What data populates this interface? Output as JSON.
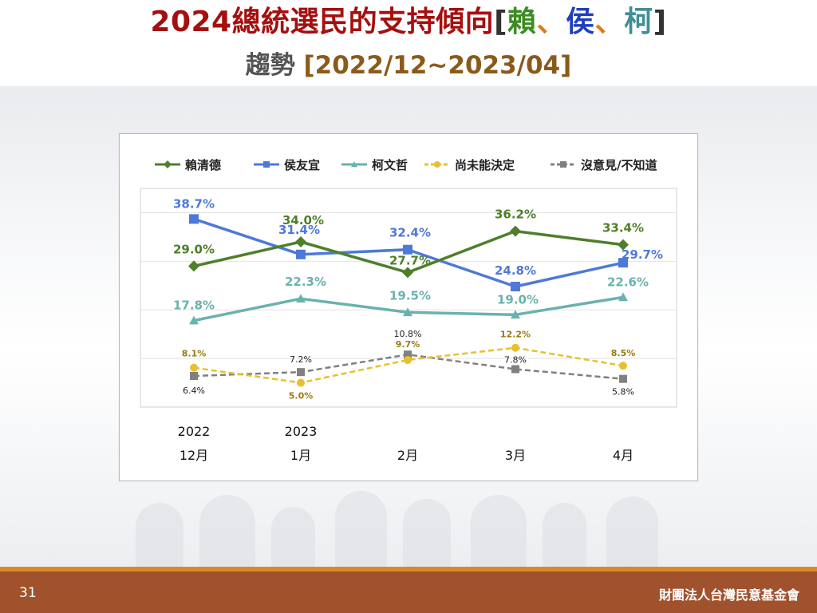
{
  "slide": {
    "title_main": "2024總統選民的支持傾向",
    "title_bracket_open": "[",
    "title_name1": "賴",
    "title_sep1": "、",
    "title_name2": "侯",
    "title_sep2": "、",
    "title_name3": "柯",
    "title_bracket_close": "]",
    "subtitle": "趨勢",
    "subtitle_range": "[2022/12~2023/04]",
    "page_number": "31",
    "organization": "財團法人台灣民意基金會"
  },
  "colors": {
    "title_red": "#a50f0f",
    "lai": "#4e7f2a",
    "hou": "#4f79d8",
    "ko": "#6ab2ad",
    "undecided": "#e8c02f",
    "no_opinion": "#808080",
    "footer": "#a0522d"
  },
  "chart_data": {
    "type": "line",
    "categories": [
      "12月",
      "1月",
      "2月",
      "3月",
      "4月"
    ],
    "year_labels": [
      "2022",
      "2023",
      "",
      "",
      ""
    ],
    "ylim": [
      0,
      45
    ],
    "grid": true,
    "legend_position": "top",
    "series": [
      {
        "name": "賴清德",
        "values": [
          29.0,
          34.0,
          27.7,
          36.2,
          33.4
        ],
        "labels": [
          "29.0%",
          "34.0%",
          "27.7%",
          "36.2%",
          "33.4%"
        ],
        "color": "#4e7f2a",
        "marker": "diamond",
        "dashed": false
      },
      {
        "name": "侯友宜",
        "values": [
          38.7,
          31.4,
          32.4,
          24.8,
          29.7
        ],
        "labels": [
          "38.7%",
          "31.4%",
          "32.4%",
          "24.8%",
          "29.7%"
        ],
        "color": "#4f79d8",
        "marker": "square",
        "dashed": false
      },
      {
        "name": "柯文哲",
        "values": [
          17.8,
          22.3,
          19.5,
          19.0,
          22.6
        ],
        "labels": [
          "17.8%",
          "22.3%",
          "19.5%",
          "19.0%",
          "22.6%"
        ],
        "color": "#6ab2ad",
        "marker": "triangle",
        "dashed": false
      },
      {
        "name": "尚未能決定",
        "values": [
          8.1,
          5.0,
          9.7,
          12.2,
          8.5
        ],
        "labels": [
          "8.1%",
          "5.0%",
          "9.7%",
          "12.2%",
          "8.5%"
        ],
        "color": "#e8c02f",
        "marker": "circle",
        "dashed": true
      },
      {
        "name": "沒意見/不知道",
        "values": [
          6.4,
          7.2,
          10.8,
          7.8,
          5.8
        ],
        "labels": [
          "6.4%",
          "7.2%",
          "10.8%",
          "7.8%",
          "5.8%"
        ],
        "color": "#808080",
        "marker": "square",
        "dashed": true
      }
    ]
  }
}
